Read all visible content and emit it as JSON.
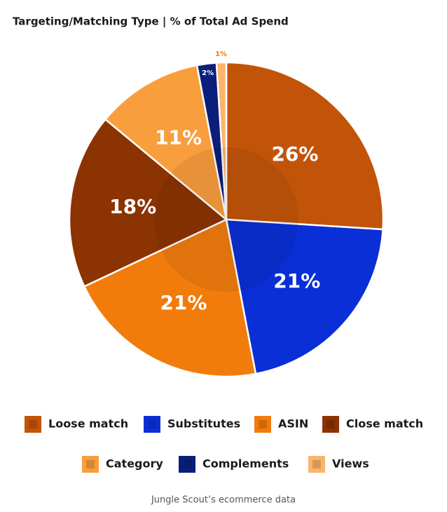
{
  "chart_data": {
    "type": "pie",
    "title": "Targeting/Matching Type  |  % of Total Ad Spend",
    "categories": [
      "Loose match",
      "Substitutes",
      "ASIN",
      "Close match",
      "Category",
      "Complements",
      "Views"
    ],
    "values": [
      26,
      21,
      21,
      18,
      11,
      2,
      1
    ],
    "value_labels": [
      "26%",
      "21%",
      "21%",
      "18%",
      "11%",
      "2%",
      "1%"
    ],
    "colors": [
      "#c2540a",
      "#0a2fd6",
      "#f17c0c",
      "#8c3302",
      "#f99e3d",
      "#0b1f7a",
      "#fbb46c"
    ],
    "source": "Jungle Scout’s ecommerce data"
  }
}
